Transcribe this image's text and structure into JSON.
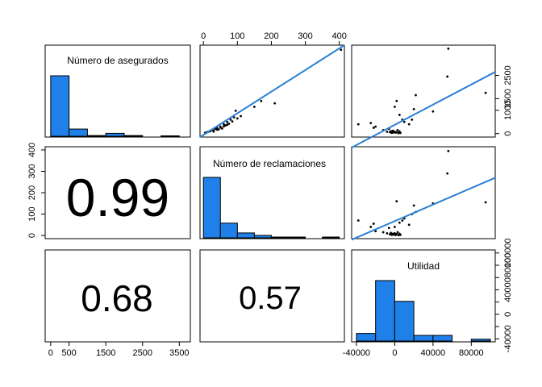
{
  "chart_data": {
    "type": "scatter",
    "layout": "pairs-matrix",
    "variables": [
      "Número de asegurados",
      "Número de reclamaciones",
      "Utilidad"
    ],
    "bar_color": "#1e80e8",
    "fit_color": "#2b7fd6",
    "axes": {
      "asegurados": {
        "range": [
          -150,
          3800
        ],
        "ticks": [
          0,
          500,
          1500,
          2500,
          3500
        ],
        "tick_labels": [
          "0",
          "500",
          "1500",
          "2500",
          "3500"
        ],
        "side": "bottom"
      },
      "reclamaciones_top": {
        "range": [
          -10,
          415
        ],
        "ticks": [
          0,
          100,
          200,
          300,
          400
        ],
        "tick_labels": [
          "0",
          "100",
          "200",
          "300",
          "400"
        ],
        "side": "top"
      },
      "reclamaciones_left": {
        "range": [
          -15,
          415
        ],
        "ticks": [
          0,
          100,
          200,
          300,
          400
        ],
        "tick_labels": [
          "0",
          "100",
          "200",
          "300",
          "400"
        ],
        "side": "left"
      },
      "asegurados_right": {
        "range": [
          -150,
          3800
        ],
        "ticks": [
          0,
          1000,
          1500,
          2500
        ],
        "tick_labels": [
          "0",
          "1000",
          "1500",
          "2500"
        ],
        "side": "right"
      },
      "utilidad_bottom": {
        "range": [
          -45000,
          105000
        ],
        "ticks": [
          -40000,
          0,
          40000,
          80000
        ],
        "tick_labels": [
          "-40000",
          "0",
          "40000",
          "80000"
        ],
        "side": "bottom"
      },
      "utilidad_right": {
        "range": [
          -45000,
          105000
        ],
        "ticks": [
          -40000,
          -20000,
          0,
          20000,
          40000,
          60000,
          80000,
          100000
        ],
        "tick_labels": [
          "-40000",
          "",
          "0",
          "",
          "40000",
          "",
          "80000",
          "100000"
        ],
        "side": "right"
      }
    },
    "histograms": [
      {
        "variable": "Número de asegurados",
        "title": "Número de asegurados",
        "bins": [
          0,
          500,
          1000,
          1500,
          2000,
          2500,
          3000,
          3500
        ],
        "counts": [
          42,
          5,
          0.5,
          2,
          0.5,
          0,
          0.3
        ],
        "max_count": 42
      },
      {
        "variable": "Número de reclamaciones",
        "title": "Número de reclamaciones",
        "bins": [
          0,
          50,
          100,
          150,
          200,
          250,
          300,
          350,
          400
        ],
        "counts": [
          37,
          9,
          3,
          1.5,
          0.5,
          0.5,
          0,
          0.5
        ],
        "max_count": 37
      },
      {
        "variable": "Utilidad",
        "title": "Utilidad",
        "bins": [
          -40000,
          -20000,
          0,
          20000,
          40000,
          60000,
          80000,
          100000
        ],
        "counts": [
          4,
          32,
          21,
          3,
          3,
          0,
          1
        ],
        "max_count": 32
      }
    ],
    "correlations": [
      {
        "pair": [
          "Número de asegurados",
          "Número de reclamaciones"
        ],
        "label": "0.99"
      },
      {
        "pair": [
          "Número de asegurados",
          "Utilidad"
        ],
        "label": "0.68"
      },
      {
        "pair": [
          "Número de reclamaciones",
          "Utilidad"
        ],
        "label": "0.57"
      }
    ],
    "scatter_asegurados_vs_reclamaciones": {
      "points": [
        [
          5,
          30
        ],
        [
          10,
          60
        ],
        [
          15,
          80
        ],
        [
          20,
          100
        ],
        [
          25,
          150
        ],
        [
          30,
          130
        ],
        [
          35,
          200
        ],
        [
          40,
          250
        ],
        [
          45,
          180
        ],
        [
          50,
          300
        ],
        [
          55,
          220
        ],
        [
          60,
          400
        ],
        [
          65,
          350
        ],
        [
          70,
          500
        ],
        [
          75,
          420
        ],
        [
          80,
          600
        ],
        [
          90,
          700
        ],
        [
          100,
          650
        ],
        [
          110,
          750
        ],
        [
          20,
          120
        ],
        [
          30,
          90
        ],
        [
          40,
          170
        ],
        [
          50,
          260
        ],
        [
          60,
          310
        ],
        [
          70,
          380
        ],
        [
          85,
          520
        ],
        [
          95,
          980
        ],
        [
          150,
          1150
        ],
        [
          170,
          1400
        ],
        [
          210,
          1300
        ],
        [
          405,
          3600
        ]
      ],
      "fit": {
        "x": [
          -10,
          415
        ],
        "y": [
          -150,
          3800
        ]
      }
    },
    "scatter_utilidad_vs_asegurados": {
      "points": [
        [
          -38000,
          400
        ],
        [
          -25000,
          450
        ],
        [
          -22000,
          250
        ],
        [
          -20000,
          300
        ],
        [
          -12000,
          150
        ],
        [
          -8000,
          80
        ],
        [
          -6000,
          200
        ],
        [
          -5000,
          60
        ],
        [
          -4000,
          100
        ],
        [
          -3000,
          30
        ],
        [
          -2000,
          120
        ],
        [
          -1000,
          50
        ],
        [
          0,
          80
        ],
        [
          1000,
          40
        ],
        [
          2000,
          60
        ],
        [
          3000,
          150
        ],
        [
          4000,
          20
        ],
        [
          5000,
          90
        ],
        [
          6000,
          30
        ],
        [
          0,
          1150
        ],
        [
          2000,
          1400
        ],
        [
          5000,
          800
        ],
        [
          8000,
          600
        ],
        [
          10000,
          500
        ],
        [
          15000,
          400
        ],
        [
          18000,
          600
        ],
        [
          20000,
          1050
        ],
        [
          22000,
          1650
        ],
        [
          40000,
          950
        ],
        [
          55000,
          2450
        ],
        [
          56000,
          3650
        ],
        [
          95000,
          1750
        ]
      ],
      "fit": {
        "x": [
          -45000,
          105000
        ],
        "y": [
          -600,
          2650
        ]
      }
    },
    "scatter_utilidad_vs_reclamaciones": {
      "points": [
        [
          -38000,
          70
        ],
        [
          -25000,
          40
        ],
        [
          -22000,
          55
        ],
        [
          -20000,
          20
        ],
        [
          -12000,
          15
        ],
        [
          -8000,
          10
        ],
        [
          -6000,
          35
        ],
        [
          -5000,
          5
        ],
        [
          -4000,
          12
        ],
        [
          -3000,
          3
        ],
        [
          -2000,
          8
        ],
        [
          -1000,
          4
        ],
        [
          0,
          10
        ],
        [
          1000,
          2
        ],
        [
          2000,
          6
        ],
        [
          3000,
          15
        ],
        [
          4000,
          1
        ],
        [
          5000,
          8
        ],
        [
          6000,
          3
        ],
        [
          0,
          40
        ],
        [
          2000,
          160
        ],
        [
          5000,
          60
        ],
        [
          8000,
          70
        ],
        [
          10000,
          80
        ],
        [
          15000,
          50
        ],
        [
          18000,
          100
        ],
        [
          20000,
          140
        ],
        [
          22000,
          110
        ],
        [
          40000,
          150
        ],
        [
          55000,
          290
        ],
        [
          56000,
          395
        ],
        [
          95000,
          155
        ]
      ],
      "fit": {
        "x": [
          -45000,
          105000
        ],
        "y": [
          -20,
          270
        ]
      }
    }
  }
}
